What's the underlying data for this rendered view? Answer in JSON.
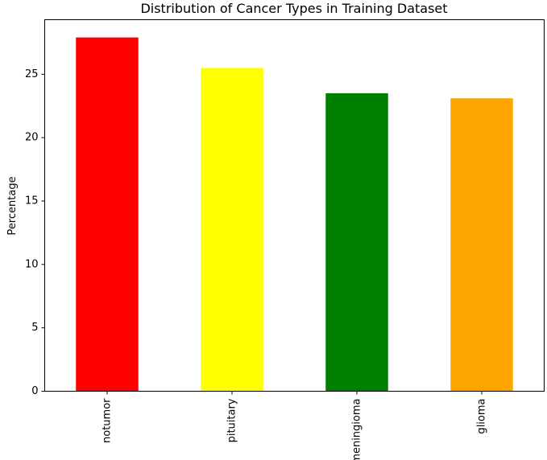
{
  "chart_data": {
    "type": "bar",
    "title": "Distribution of Cancer Types in Training Dataset",
    "xlabel": "",
    "ylabel": "Percentage",
    "categories": [
      "notumor",
      "pituitary",
      "meningioma",
      "glioma"
    ],
    "values": [
      27.9,
      25.5,
      23.5,
      23.1
    ],
    "colors": [
      "#ff0000",
      "#ffff00",
      "#008000",
      "#ffa500"
    ],
    "ylim": [
      0,
      29.3
    ],
    "yticks": [
      0,
      5,
      10,
      15,
      20,
      25
    ],
    "ytick_labels": [
      "0",
      "5",
      "10",
      "15",
      "20",
      "25"
    ],
    "grid": false,
    "legend": "none"
  }
}
